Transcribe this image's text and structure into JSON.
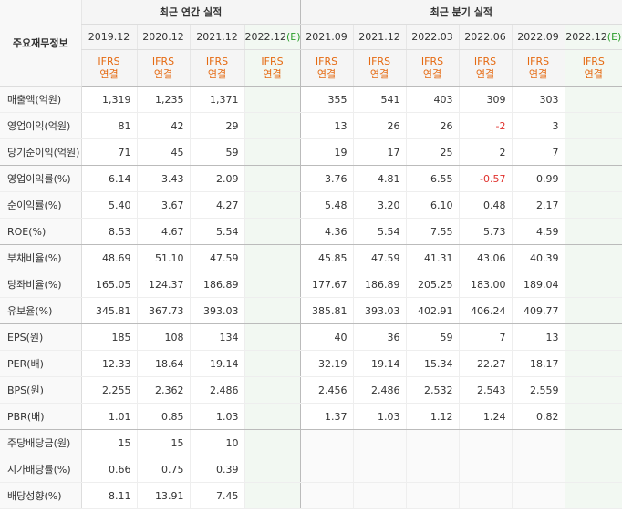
{
  "corner_label": "주요재무정보",
  "groups": {
    "annual": "최근 연간 실적",
    "quarter": "최근 분기 실적"
  },
  "annual_periods": [
    "2019.12",
    "2020.12",
    "2021.12",
    "2022.12"
  ],
  "annual_estimate_mark": "(E)",
  "quarter_periods": [
    "2021.09",
    "2021.12",
    "2022.03",
    "2022.06",
    "2022.09",
    "2022.12"
  ],
  "quarter_estimate_mark": "(E)",
  "ifrs_line1": "IFRS",
  "ifrs_line2": "연결",
  "rows": [
    {
      "label": "매출액(억원)",
      "annual": [
        "1,319",
        "1,235",
        "1,371",
        ""
      ],
      "quarter": [
        "355",
        "541",
        "403",
        "309",
        "303",
        ""
      ]
    },
    {
      "label": "영업이익(억원)",
      "annual": [
        "81",
        "42",
        "29",
        ""
      ],
      "quarter": [
        "13",
        "26",
        "26",
        "-2",
        "3",
        ""
      ]
    },
    {
      "label": "당기순이익(억원)",
      "annual": [
        "71",
        "45",
        "59",
        ""
      ],
      "quarter": [
        "19",
        "17",
        "25",
        "2",
        "7",
        ""
      ]
    },
    {
      "label": "영업이익률(%)",
      "annual": [
        "6.14",
        "3.43",
        "2.09",
        ""
      ],
      "quarter": [
        "3.76",
        "4.81",
        "6.55",
        "-0.57",
        "0.99",
        ""
      ]
    },
    {
      "label": "순이익률(%)",
      "annual": [
        "5.40",
        "3.67",
        "4.27",
        ""
      ],
      "quarter": [
        "5.48",
        "3.20",
        "6.10",
        "0.48",
        "2.17",
        ""
      ]
    },
    {
      "label": "ROE(%)",
      "annual": [
        "8.53",
        "4.67",
        "5.54",
        ""
      ],
      "quarter": [
        "4.36",
        "5.54",
        "7.55",
        "5.73",
        "4.59",
        ""
      ]
    },
    {
      "label": "부채비율(%)",
      "annual": [
        "48.69",
        "51.10",
        "47.59",
        ""
      ],
      "quarter": [
        "45.85",
        "47.59",
        "41.31",
        "43.06",
        "40.39",
        ""
      ]
    },
    {
      "label": "당좌비율(%)",
      "annual": [
        "165.05",
        "124.37",
        "186.89",
        ""
      ],
      "quarter": [
        "177.67",
        "186.89",
        "205.25",
        "183.00",
        "189.04",
        ""
      ]
    },
    {
      "label": "유보율(%)",
      "annual": [
        "345.81",
        "367.73",
        "393.03",
        ""
      ],
      "quarter": [
        "385.81",
        "393.03",
        "402.91",
        "406.24",
        "409.77",
        ""
      ]
    },
    {
      "label": "EPS(원)",
      "annual": [
        "185",
        "108",
        "134",
        ""
      ],
      "quarter": [
        "40",
        "36",
        "59",
        "7",
        "13",
        ""
      ]
    },
    {
      "label": "PER(배)",
      "annual": [
        "12.33",
        "18.64",
        "19.14",
        ""
      ],
      "quarter": [
        "32.19",
        "19.14",
        "15.34",
        "22.27",
        "18.17",
        ""
      ]
    },
    {
      "label": "BPS(원)",
      "annual": [
        "2,255",
        "2,362",
        "2,486",
        ""
      ],
      "quarter": [
        "2,456",
        "2,486",
        "2,532",
        "2,543",
        "2,559",
        ""
      ]
    },
    {
      "label": "PBR(배)",
      "annual": [
        "1.01",
        "0.85",
        "1.03",
        ""
      ],
      "quarter": [
        "1.37",
        "1.03",
        "1.12",
        "1.24",
        "0.82",
        ""
      ]
    },
    {
      "label": "주당배당금(원)",
      "annual": [
        "15",
        "15",
        "10",
        ""
      ],
      "quarter": [
        "",
        "",
        "",
        "",
        "",
        ""
      ]
    },
    {
      "label": "시가배당률(%)",
      "annual": [
        "0.66",
        "0.75",
        "0.39",
        ""
      ],
      "quarter": [
        "",
        "",
        "",
        "",
        "",
        ""
      ]
    },
    {
      "label": "배당성향(%)",
      "annual": [
        "8.11",
        "13.91",
        "7.45",
        ""
      ],
      "quarter": [
        "",
        "",
        "",
        "",
        "",
        ""
      ]
    }
  ],
  "colors": {
    "ifrs": "#e56a12",
    "negative": "#e0312d",
    "estimate_bg": "#f2f8f2",
    "estimate_mark": "#2a9d2a"
  }
}
